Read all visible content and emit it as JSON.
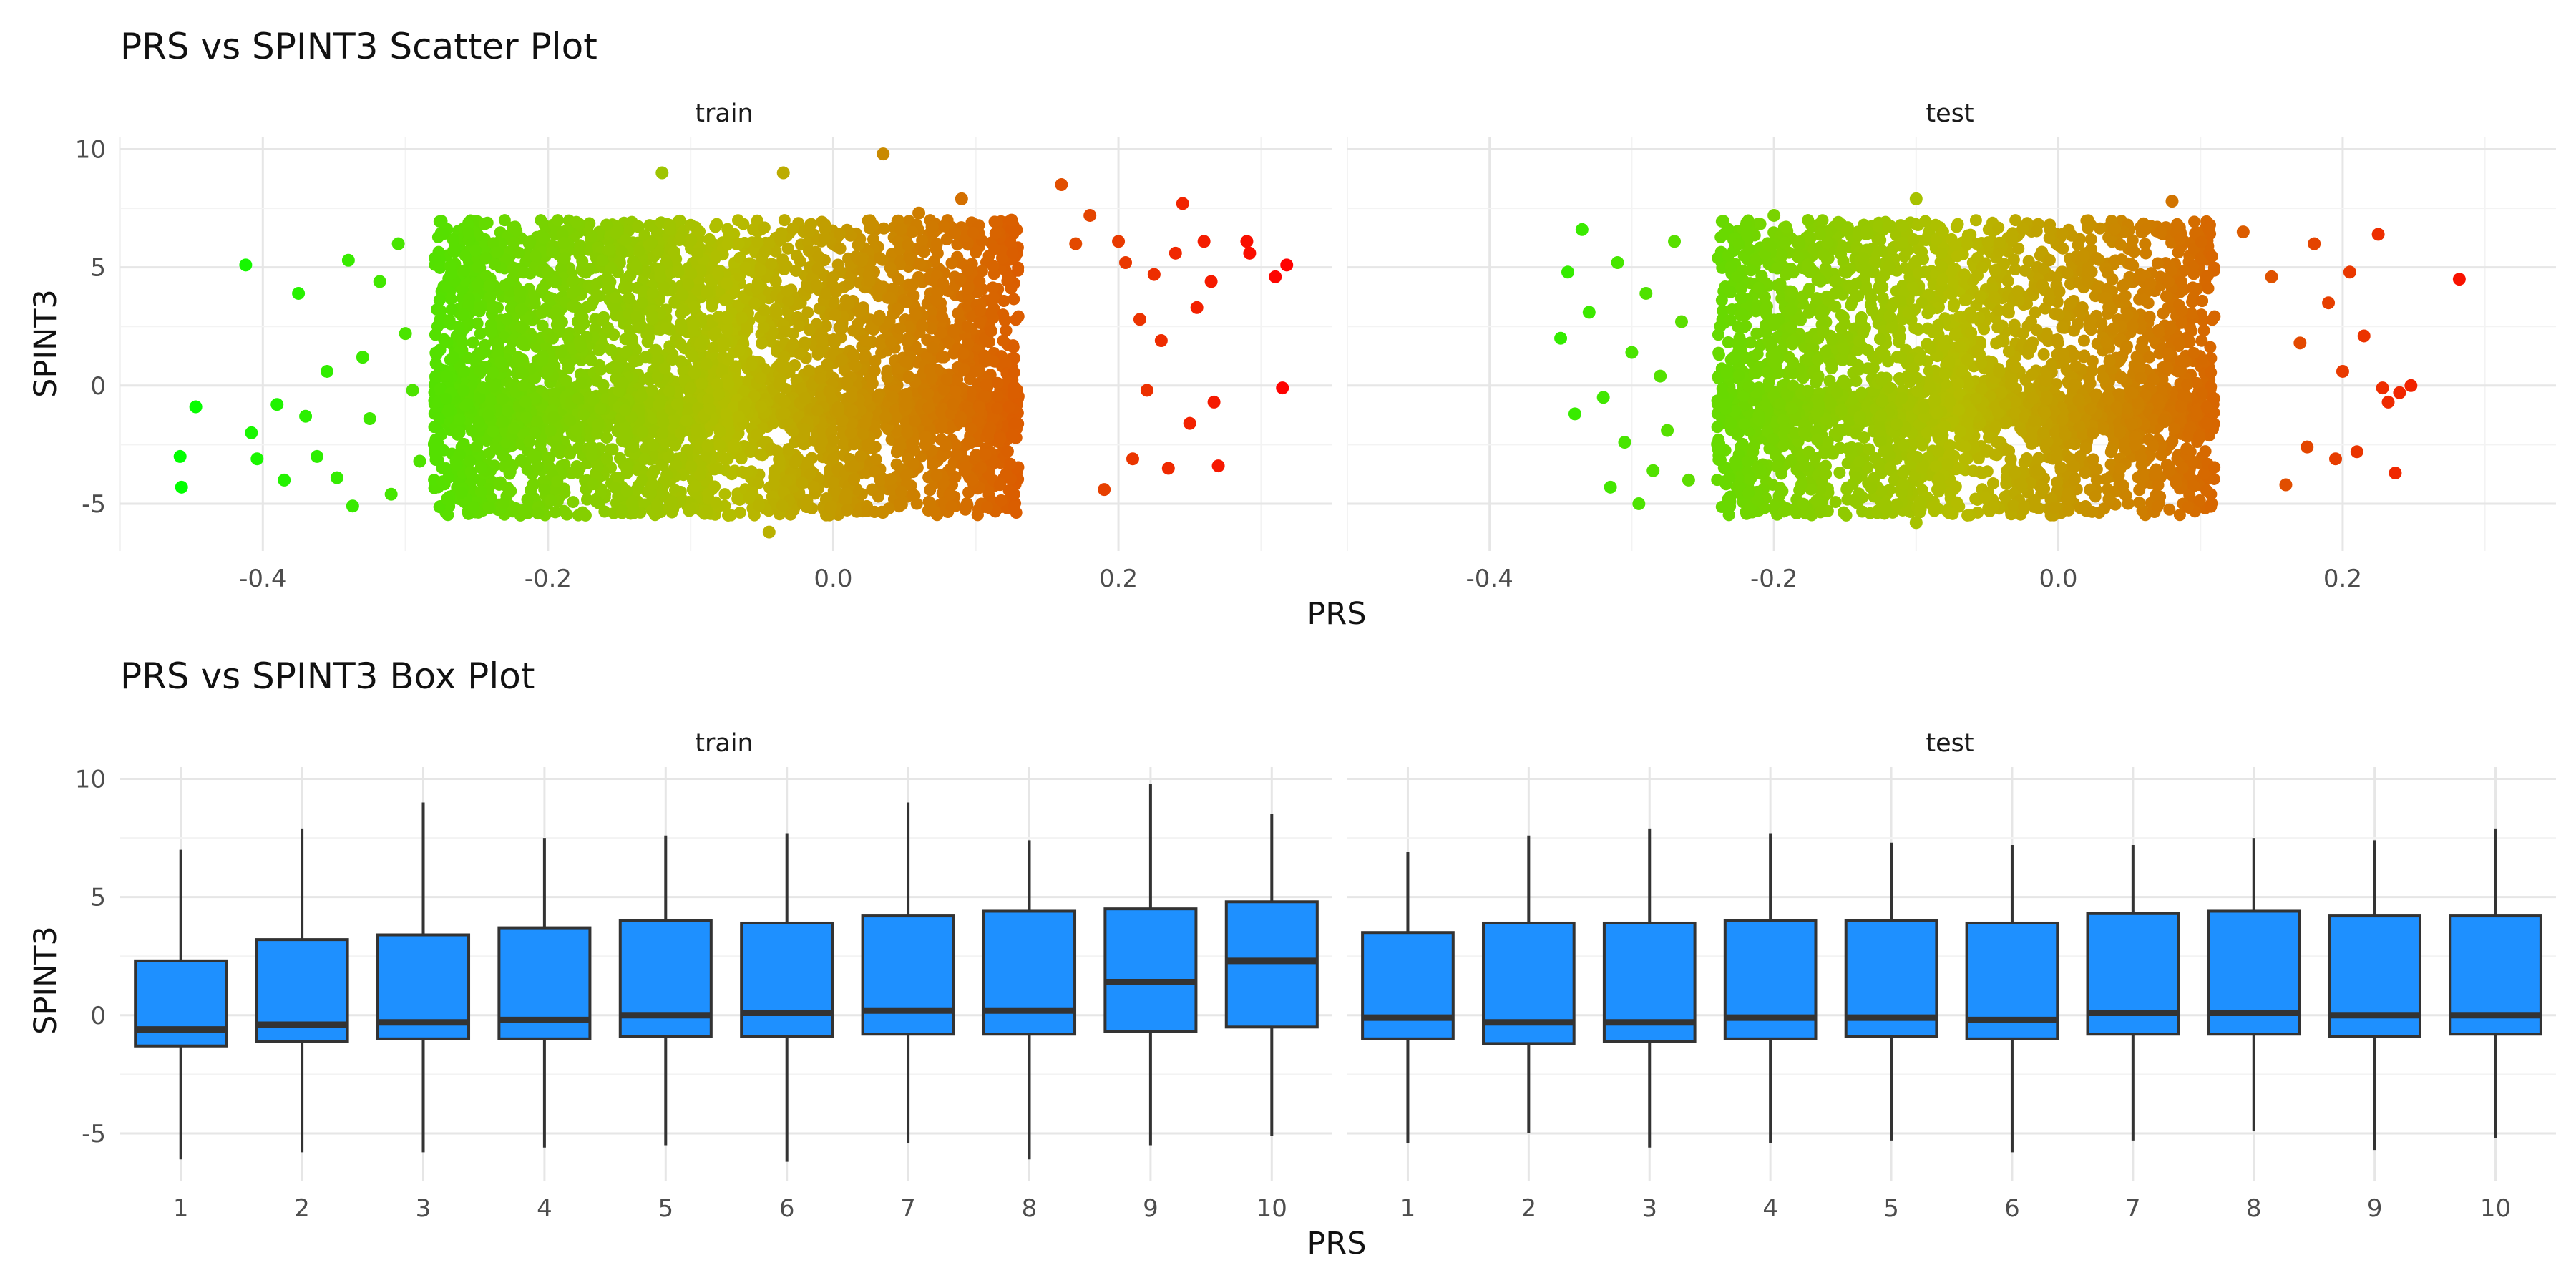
{
  "chart_data": [
    {
      "type": "scatter",
      "title": "PRS vs SPINT3 Scatter Plot",
      "xlabel": "PRS",
      "ylabel": "SPINT3",
      "xlim": [
        -0.5,
        0.35
      ],
      "ylim": [
        -7,
        10.5
      ],
      "x_ticks": [
        -0.4,
        -0.2,
        0.0,
        0.2
      ],
      "x_tick_labels": [
        "-0.4",
        "-0.2",
        "0.0",
        "0.2"
      ],
      "y_ticks": [
        -5,
        0,
        5,
        10
      ],
      "y_tick_labels": [
        "-5",
        "0",
        "5",
        "10"
      ],
      "grid": true,
      "color_scale": {
        "low": "#00ff00",
        "mid": "#b5bd00",
        "high": "#ff0000",
        "by": "PRS"
      },
      "facets": [
        {
          "name": "train",
          "dense_cloud": {
            "x_range": [
              -0.28,
              0.13
            ],
            "y_range": [
              -5.5,
              7.0
            ]
          },
          "points": [
            [
              -0.458,
              -3.0
            ],
            [
              -0.457,
              -4.3
            ],
            [
              -0.447,
              -0.9
            ],
            [
              -0.412,
              5.1
            ],
            [
              -0.408,
              -2.0
            ],
            [
              -0.404,
              -3.1
            ],
            [
              -0.39,
              -0.8
            ],
            [
              -0.385,
              -4.0
            ],
            [
              -0.375,
              3.9
            ],
            [
              -0.37,
              -1.3
            ],
            [
              -0.362,
              -3.0
            ],
            [
              -0.355,
              0.6
            ],
            [
              -0.348,
              -3.9
            ],
            [
              -0.34,
              5.3
            ],
            [
              -0.337,
              -5.1
            ],
            [
              -0.33,
              1.2
            ],
            [
              -0.325,
              -1.4
            ],
            [
              -0.318,
              4.4
            ],
            [
              -0.31,
              -4.6
            ],
            [
              -0.305,
              6.0
            ],
            [
              -0.3,
              2.2
            ],
            [
              -0.295,
              -0.2
            ],
            [
              -0.29,
              -3.2
            ],
            [
              -0.12,
              9.0
            ],
            [
              -0.035,
              9.0
            ],
            [
              -0.045,
              -6.2
            ],
            [
              0.035,
              9.8
            ],
            [
              0.06,
              7.3
            ],
            [
              0.09,
              7.9
            ],
            [
              0.125,
              7.0
            ],
            [
              0.16,
              8.5
            ],
            [
              0.17,
              6.0
            ],
            [
              0.18,
              7.2
            ],
            [
              0.19,
              -4.4
            ],
            [
              0.2,
              6.1
            ],
            [
              0.205,
              5.2
            ],
            [
              0.21,
              -3.1
            ],
            [
              0.215,
              2.8
            ],
            [
              0.22,
              -0.2
            ],
            [
              0.225,
              4.7
            ],
            [
              0.23,
              1.9
            ],
            [
              0.235,
              -3.5
            ],
            [
              0.24,
              5.6
            ],
            [
              0.245,
              7.7
            ],
            [
              0.25,
              -1.6
            ],
            [
              0.255,
              3.3
            ],
            [
              0.26,
              6.1
            ],
            [
              0.265,
              4.4
            ],
            [
              0.267,
              -0.7
            ],
            [
              0.27,
              -3.4
            ],
            [
              0.29,
              6.1
            ],
            [
              0.292,
              5.6
            ],
            [
              0.31,
              4.6
            ],
            [
              0.315,
              -0.1
            ],
            [
              0.318,
              5.1
            ]
          ]
        },
        {
          "name": "test",
          "dense_cloud": {
            "x_range": [
              -0.24,
              0.11
            ],
            "y_range": [
              -5.5,
              7.0
            ]
          },
          "points": [
            [
              -0.35,
              2.0
            ],
            [
              -0.345,
              4.8
            ],
            [
              -0.34,
              -1.2
            ],
            [
              -0.335,
              6.6
            ],
            [
              -0.33,
              3.1
            ],
            [
              -0.32,
              -0.5
            ],
            [
              -0.315,
              -4.3
            ],
            [
              -0.31,
              5.2
            ],
            [
              -0.305,
              -2.4
            ],
            [
              -0.3,
              1.4
            ],
            [
              -0.295,
              -5.0
            ],
            [
              -0.29,
              3.9
            ],
            [
              -0.285,
              -3.6
            ],
            [
              -0.28,
              0.4
            ],
            [
              -0.275,
              -1.9
            ],
            [
              -0.27,
              6.1
            ],
            [
              -0.265,
              2.7
            ],
            [
              -0.26,
              -4.0
            ],
            [
              -0.2,
              7.2
            ],
            [
              -0.1,
              7.9
            ],
            [
              -0.1,
              -5.8
            ],
            [
              0.08,
              7.8
            ],
            [
              0.13,
              6.5
            ],
            [
              0.15,
              4.6
            ],
            [
              0.16,
              -4.2
            ],
            [
              0.17,
              1.8
            ],
            [
              0.175,
              -2.6
            ],
            [
              0.18,
              6.0
            ],
            [
              0.19,
              3.5
            ],
            [
              0.195,
              -3.1
            ],
            [
              0.2,
              0.6
            ],
            [
              0.205,
              4.8
            ],
            [
              0.21,
              -2.8
            ],
            [
              0.215,
              2.1
            ],
            [
              0.225,
              6.4
            ],
            [
              0.228,
              -0.1
            ],
            [
              0.232,
              -0.7
            ],
            [
              0.237,
              -3.7
            ],
            [
              0.24,
              -0.3
            ],
            [
              0.248,
              0.0
            ],
            [
              0.282,
              4.5
            ]
          ]
        }
      ]
    },
    {
      "type": "box",
      "title": "PRS vs SPINT3 Box Plot",
      "xlabel": "PRS",
      "ylabel": "SPINT3",
      "categories": [
        "1",
        "2",
        "3",
        "4",
        "5",
        "6",
        "7",
        "8",
        "9",
        "10"
      ],
      "ylim": [
        -7,
        10.5
      ],
      "y_ticks": [
        -5,
        0,
        5,
        10
      ],
      "y_tick_labels": [
        "-5",
        "0",
        "5",
        "10"
      ],
      "grid": true,
      "fill_color": "#1e90ff",
      "outline_color": "#333333",
      "facets": [
        {
          "name": "train",
          "boxes": [
            {
              "min": -6.1,
              "q1": -1.3,
              "median": -0.6,
              "q3": 2.3,
              "max": 7.0
            },
            {
              "min": -5.8,
              "q1": -1.1,
              "median": -0.4,
              "q3": 3.2,
              "max": 7.9
            },
            {
              "min": -5.8,
              "q1": -1.0,
              "median": -0.3,
              "q3": 3.4,
              "max": 9.0
            },
            {
              "min": -5.6,
              "q1": -1.0,
              "median": -0.2,
              "q3": 3.7,
              "max": 7.5
            },
            {
              "min": -5.5,
              "q1": -0.9,
              "median": 0.0,
              "q3": 4.0,
              "max": 7.6
            },
            {
              "min": -6.2,
              "q1": -0.9,
              "median": 0.1,
              "q3": 3.9,
              "max": 7.7
            },
            {
              "min": -5.4,
              "q1": -0.8,
              "median": 0.2,
              "q3": 4.2,
              "max": 9.0
            },
            {
              "min": -6.1,
              "q1": -0.8,
              "median": 0.2,
              "q3": 4.4,
              "max": 7.4
            },
            {
              "min": -5.5,
              "q1": -0.7,
              "median": 1.4,
              "q3": 4.5,
              "max": 9.8
            },
            {
              "min": -5.1,
              "q1": -0.5,
              "median": 2.3,
              "q3": 4.8,
              "max": 8.5
            }
          ]
        },
        {
          "name": "test",
          "boxes": [
            {
              "min": -5.4,
              "q1": -1.0,
              "median": -0.1,
              "q3": 3.5,
              "max": 6.9
            },
            {
              "min": -5.0,
              "q1": -1.2,
              "median": -0.3,
              "q3": 3.9,
              "max": 7.6
            },
            {
              "min": -5.6,
              "q1": -1.1,
              "median": -0.3,
              "q3": 3.9,
              "max": 7.9
            },
            {
              "min": -5.4,
              "q1": -1.0,
              "median": -0.1,
              "q3": 4.0,
              "max": 7.7
            },
            {
              "min": -5.3,
              "q1": -0.9,
              "median": -0.1,
              "q3": 4.0,
              "max": 7.3
            },
            {
              "min": -5.8,
              "q1": -1.0,
              "median": -0.2,
              "q3": 3.9,
              "max": 7.2
            },
            {
              "min": -5.3,
              "q1": -0.8,
              "median": 0.1,
              "q3": 4.3,
              "max": 7.2
            },
            {
              "min": -4.9,
              "q1": -0.8,
              "median": 0.1,
              "q3": 4.4,
              "max": 7.5
            },
            {
              "min": -5.7,
              "q1": -0.9,
              "median": 0.0,
              "q3": 4.2,
              "max": 7.4
            },
            {
              "min": -5.2,
              "q1": -0.8,
              "median": 0.0,
              "q3": 4.2,
              "max": 7.9
            }
          ]
        }
      ]
    }
  ]
}
